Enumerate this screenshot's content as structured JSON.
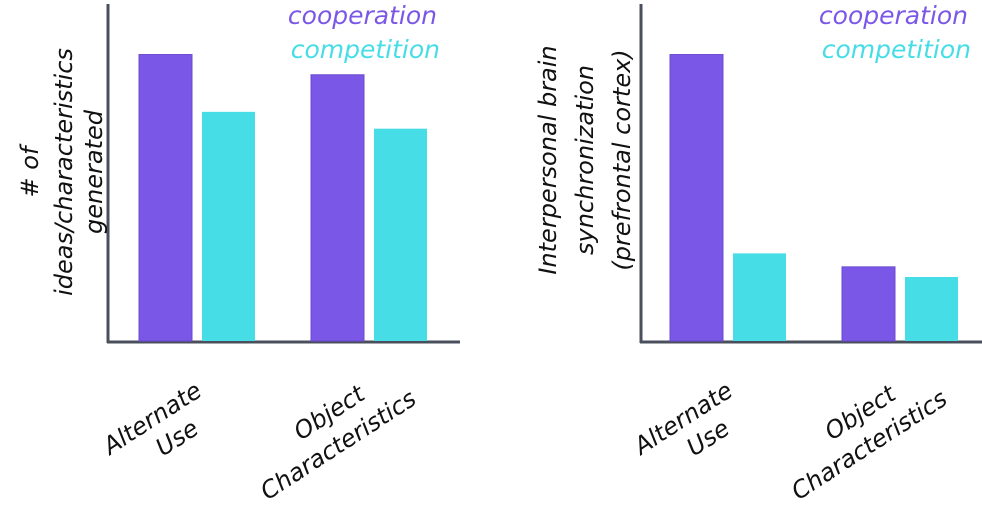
{
  "colors": {
    "cooperation": "#7b57e8",
    "competition": "#46dde6",
    "axis": "#4a4f5c"
  },
  "chart_data": [
    {
      "type": "bar",
      "categories": [
        [
          "Alternate",
          "Use"
        ],
        [
          "Object",
          "Characteristics"
        ]
      ],
      "ylabel": [
        "# of",
        "ideas/characteristics",
        "generated"
      ],
      "ylim": [
        0,
        1
      ],
      "grid": false,
      "legend_placement": "top-right",
      "series": [
        {
          "name": "cooperation",
          "values": [
            0.85,
            0.79
          ]
        },
        {
          "name": "competition",
          "values": [
            0.68,
            0.63
          ]
        }
      ]
    },
    {
      "type": "bar",
      "categories": [
        [
          "Alternate",
          "Use"
        ],
        [
          "Object",
          "Characteristics"
        ]
      ],
      "ylabel": [
        "Interpersonal brain",
        "synchronization",
        "(prefrontal cortex)"
      ],
      "ylim": [
        0,
        1
      ],
      "grid": false,
      "legend_placement": "top-right",
      "series": [
        {
          "name": "cooperation",
          "values": [
            0.85,
            0.22
          ]
        },
        {
          "name": "competition",
          "values": [
            0.26,
            0.19
          ]
        }
      ]
    }
  ]
}
